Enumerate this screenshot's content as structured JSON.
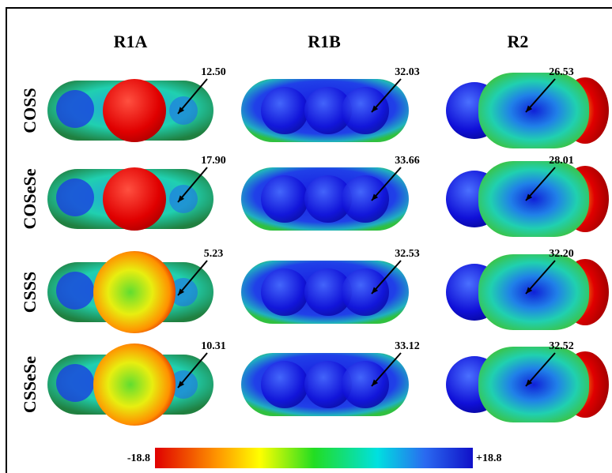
{
  "figure": {
    "columns": [
      "R1A",
      "R1B",
      "R2"
    ],
    "rows": [
      {
        "label": "COSS",
        "values": [
          "12.50",
          "32.03",
          "26.53"
        ]
      },
      {
        "label": "COSeSe",
        "values": [
          "17.90",
          "33.66",
          "28.01"
        ]
      },
      {
        "label": "CSSS",
        "values": [
          "5.23",
          "32.53",
          "32.20"
        ]
      },
      {
        "label": "CSSeSe",
        "values": [
          "10.31",
          "33.12",
          "32.52"
        ]
      }
    ],
    "colorbar": {
      "min_label": "-18.8",
      "max_label": "+18.8"
    }
  }
}
